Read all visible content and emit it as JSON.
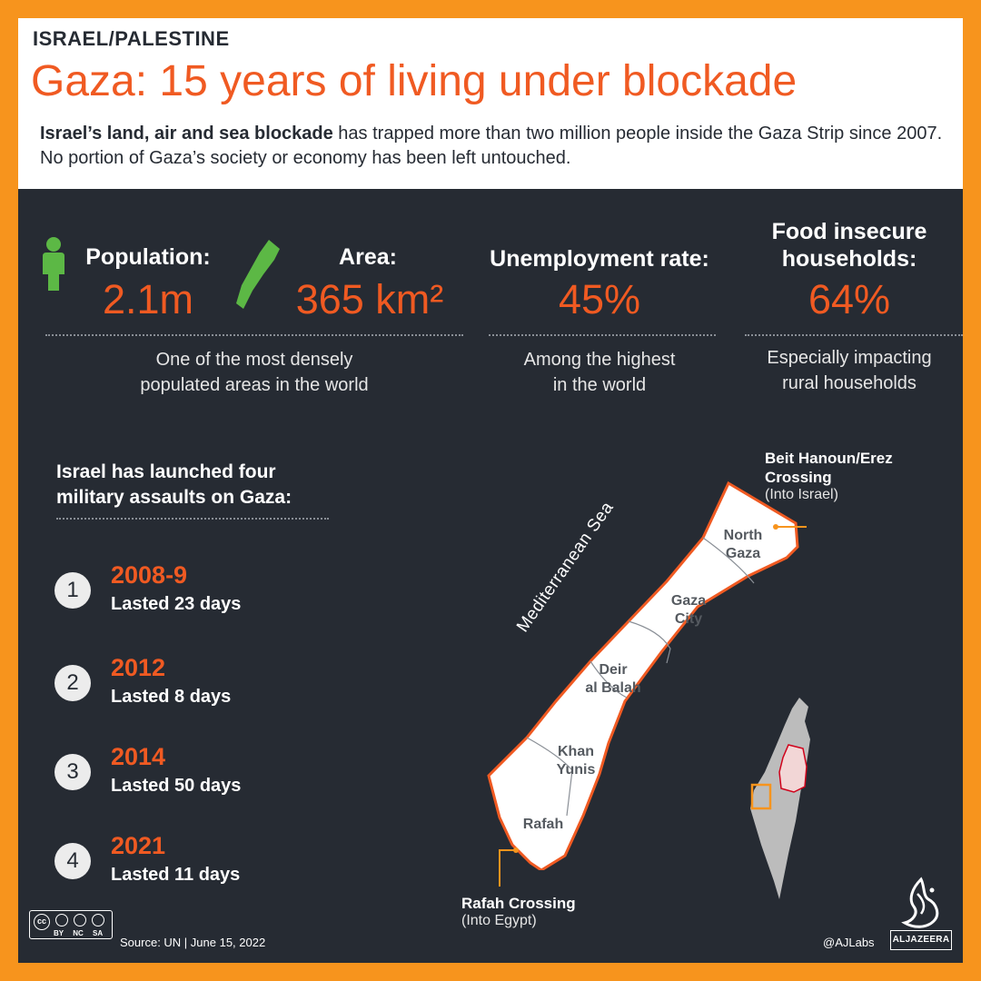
{
  "header": {
    "kicker": "ISRAEL/PALESTINE",
    "title": "Gaza: 15 years of living under blockade",
    "intro_bold": "Israel’s land, air and sea blockade",
    "intro_rest": " has trapped more than two million people inside the Gaza Strip since 2007. No portion of Gaza’s society or economy has been left untouched."
  },
  "stats": {
    "population": {
      "label": "Population:",
      "value": "2.1m"
    },
    "area": {
      "label": "Area:",
      "value": "365 km²"
    },
    "pop_area_note": [
      "One of the most densely",
      "populated areas in the world"
    ],
    "unemployment": {
      "label": "Unemployment rate:",
      "value": "45%",
      "note": [
        "Among the highest",
        "in the world"
      ]
    },
    "food": {
      "label": [
        "Food insecure",
        "households:"
      ],
      "value": "64%",
      "note": [
        "Especially impacting",
        "rural households"
      ]
    }
  },
  "assaults": {
    "heading": [
      "Israel has launched four",
      "military assaults on Gaza:"
    ],
    "items": [
      {
        "number": "1",
        "year": "2008-9",
        "duration": "Lasted 23 days"
      },
      {
        "number": "2",
        "year": "2012",
        "duration": "Lasted 8 days"
      },
      {
        "number": "3",
        "year": "2014",
        "duration": "Lasted 50 days"
      },
      {
        "number": "4",
        "year": "2021",
        "duration": "Lasted 11 days"
      }
    ]
  },
  "map": {
    "sea_label": "Mediterranean Sea",
    "regions": [
      {
        "name": [
          "North",
          "Gaza"
        ]
      },
      {
        "name": [
          "Gaza",
          "City"
        ]
      },
      {
        "name": [
          "Deir",
          "al Balah"
        ]
      },
      {
        "name": [
          "Khan",
          "Yunis"
        ]
      },
      {
        "name": [
          "Rafah"
        ]
      }
    ],
    "north_crossing": {
      "title": [
        "Beit Hanoun/Erez",
        "Crossing"
      ],
      "sub": "(Into Israel)"
    },
    "south_crossing": {
      "title": "Rafah Crossing",
      "sub": "(Into Egypt)"
    }
  },
  "footer": {
    "license_labels": [
      "BY",
      "NC",
      "SA"
    ],
    "source": "Source: UN | June 15, 2022",
    "handle": "@AJLabs",
    "brand": "ALJAZEERA"
  },
  "colors": {
    "frame": "#f7941d",
    "accent": "#f05a22",
    "dark_bg": "#262b33",
    "gaza_fill": "#ffffff",
    "region_green": "#5cb845"
  }
}
